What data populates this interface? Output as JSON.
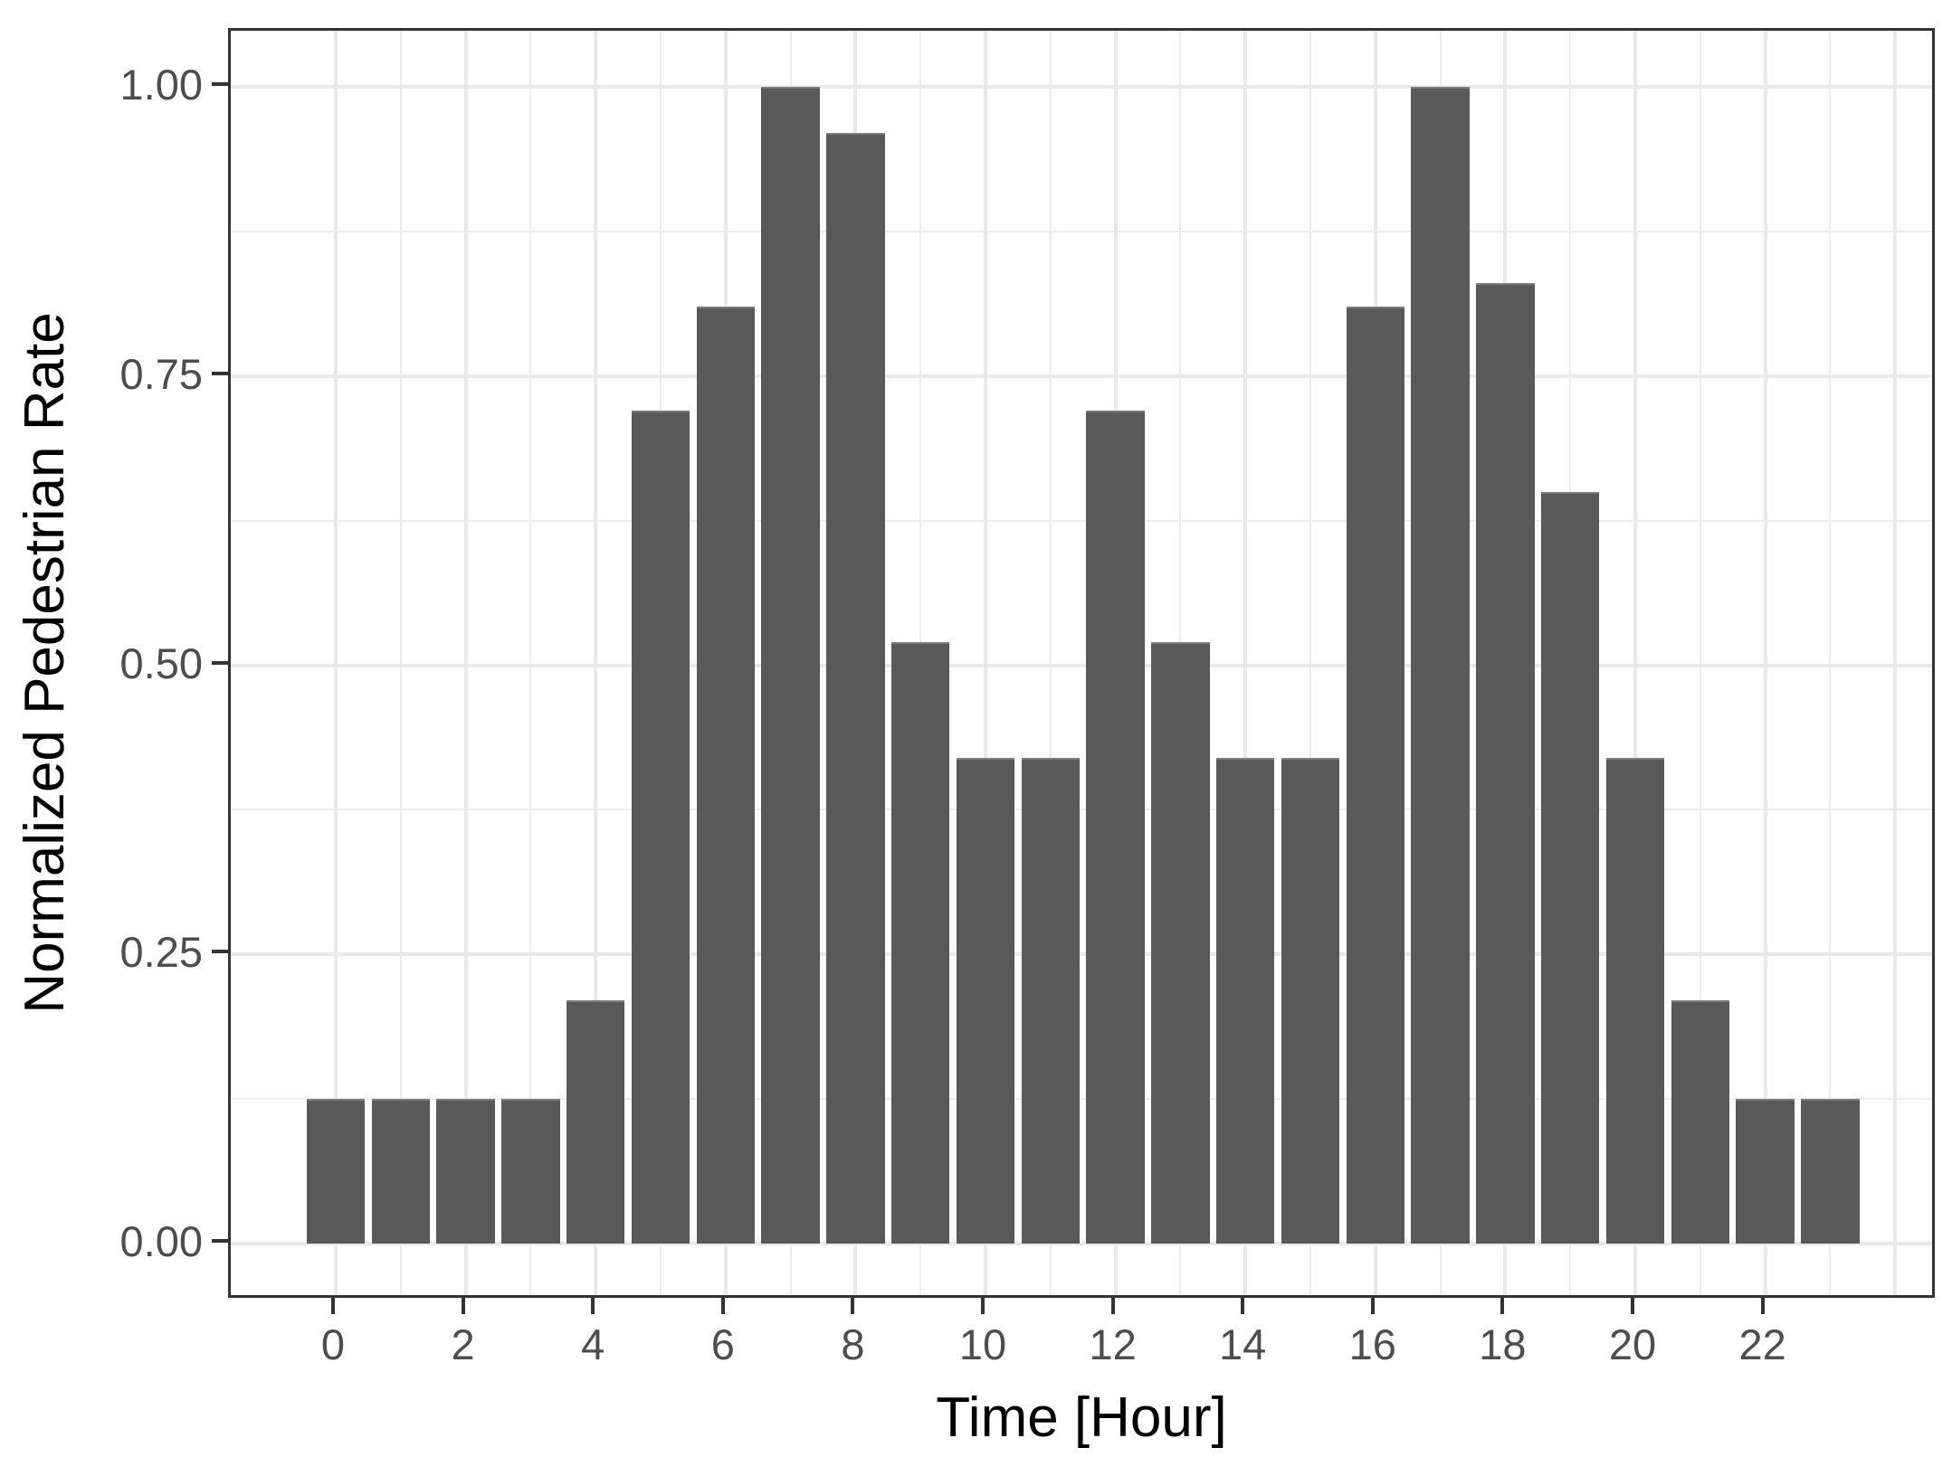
{
  "figure": {
    "background": "#ffffff"
  },
  "chart_data": {
    "type": "bar",
    "title": "",
    "xlabel": "Time [Hour]",
    "ylabel": "Normalized Pedestrian Rate",
    "categories": [
      0,
      1,
      2,
      3,
      4,
      5,
      6,
      7,
      8,
      9,
      10,
      11,
      12,
      13,
      14,
      15,
      16,
      17,
      18,
      19,
      20,
      21,
      22,
      23
    ],
    "values": [
      0.125,
      0.125,
      0.125,
      0.125,
      0.21,
      0.72,
      0.81,
      1.0,
      0.96,
      0.52,
      0.42,
      0.42,
      0.72,
      0.52,
      0.42,
      0.42,
      0.81,
      1.0,
      0.83,
      0.65,
      0.42,
      0.21,
      0.125,
      0.125
    ],
    "ylim": [
      0,
      1.05
    ],
    "y_major_ticks": [
      0,
      0.25,
      0.5,
      0.75,
      1.0
    ],
    "y_tick_labels": [
      "0.00",
      "0.25",
      "0.50",
      "0.75",
      "1.00"
    ],
    "y_minor_ticks": [
      0.125,
      0.375,
      0.625,
      0.875
    ],
    "x_tick_hours": [
      0,
      2,
      4,
      6,
      8,
      10,
      12,
      14,
      16,
      18,
      20,
      22
    ],
    "x_tick_labels": [
      "0",
      "2",
      "4",
      "6",
      "8",
      "10",
      "12",
      "14",
      "16",
      "18",
      "20",
      "22"
    ],
    "x_grid_major_hours": [
      0,
      2,
      4,
      6,
      8,
      10,
      12,
      14,
      16,
      18,
      20,
      22,
      24
    ],
    "x_grid_minor_hours": [
      1,
      3,
      5,
      7,
      9,
      11,
      13,
      15,
      17,
      19,
      21,
      23
    ],
    "grid_on": true,
    "legend": "none",
    "colors": {
      "bar_fill": "#595959",
      "bar_top_edge": "#7c7c7c",
      "grid_major": "#e9e9e9",
      "grid_minor": "#ededed",
      "panel_border": "#333333",
      "tick_mark": "#333333",
      "tick_label": "#4d4d4d",
      "axis_title": "#000000",
      "panel_background": "#ffffff"
    }
  }
}
